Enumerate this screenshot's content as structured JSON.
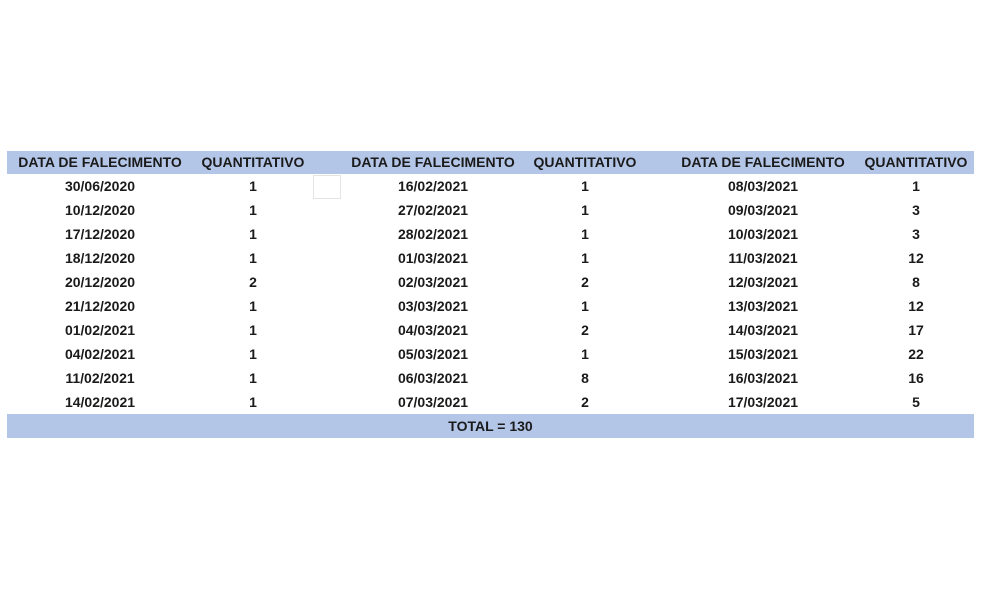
{
  "headers": [
    "DATA DE FALECIMENTO",
    "QUANTITATIVO",
    "DATA DE FALECIMENTO",
    "QUANTITATIVO",
    "DATA DE FALECIMENTO",
    "QUANTITATIVO"
  ],
  "groups": [
    {
      "rows": [
        [
          "30/06/2020",
          "1"
        ],
        [
          "10/12/2020",
          "1"
        ],
        [
          "17/12/2020",
          "1"
        ],
        [
          "18/12/2020",
          "1"
        ],
        [
          "20/12/2020",
          "2"
        ],
        [
          "21/12/2020",
          "1"
        ],
        [
          "01/02/2021",
          "1"
        ],
        [
          "04/02/2021",
          "1"
        ],
        [
          "11/02/2021",
          "1"
        ],
        [
          "14/02/2021",
          "1"
        ]
      ]
    },
    {
      "rows": [
        [
          "16/02/2021",
          "1"
        ],
        [
          "27/02/2021",
          "1"
        ],
        [
          "28/02/2021",
          "1"
        ],
        [
          "01/03/2021",
          "1"
        ],
        [
          "02/03/2021",
          "2"
        ],
        [
          "03/03/2021",
          "1"
        ],
        [
          "04/03/2021",
          "2"
        ],
        [
          "05/03/2021",
          "1"
        ],
        [
          "06/03/2021",
          "8"
        ],
        [
          "07/03/2021",
          "2"
        ]
      ]
    },
    {
      "rows": [
        [
          "08/03/2021",
          "1"
        ],
        [
          "09/03/2021",
          "3"
        ],
        [
          "10/03/2021",
          "3"
        ],
        [
          "11/03/2021",
          "12"
        ],
        [
          "12/03/2021",
          "8"
        ],
        [
          "13/03/2021",
          "12"
        ],
        [
          "14/03/2021",
          "17"
        ],
        [
          "15/03/2021",
          "22"
        ],
        [
          "16/03/2021",
          "16"
        ],
        [
          "17/03/2021",
          "5"
        ]
      ]
    }
  ],
  "total": "TOTAL = 130",
  "colors": {
    "header_band": "#b4c6e7"
  }
}
